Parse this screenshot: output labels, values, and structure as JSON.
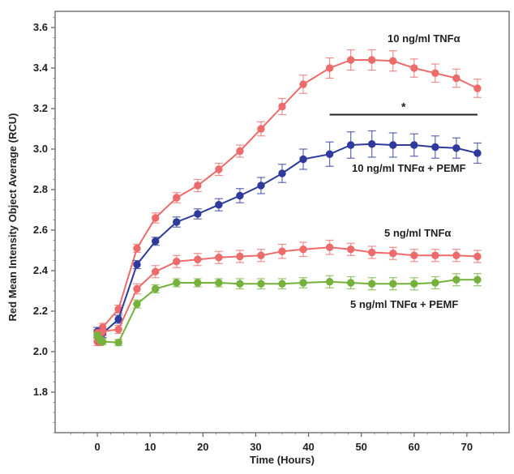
{
  "chart_data": {
    "type": "line",
    "xlabel": "Time (Hours)",
    "ylabel": "Red Mean Intensity Object Average (RCU)",
    "xlim": [
      -8,
      78
    ],
    "ylim": [
      1.6,
      3.68
    ],
    "xticks": [
      0,
      10,
      20,
      30,
      40,
      50,
      60,
      70
    ],
    "yticks": [
      1.8,
      2.0,
      2.2,
      2.4,
      2.6,
      2.8,
      3.0,
      3.2,
      3.4,
      3.6
    ],
    "x": [
      0,
      0.5,
      1,
      4,
      7.5,
      11,
      15,
      19,
      23,
      27,
      31,
      35,
      39,
      44,
      48,
      52,
      56,
      60,
      64,
      68,
      72
    ],
    "series": [
      {
        "name": "10 ng/ml TNFα",
        "color": "#ee6b6b",
        "values": [
          2.05,
          2.07,
          2.12,
          2.21,
          2.51,
          2.66,
          2.76,
          2.82,
          2.9,
          2.99,
          3.1,
          3.21,
          3.32,
          3.4,
          3.44,
          3.44,
          3.435,
          3.4,
          3.375,
          3.35,
          3.3
        ],
        "errors": [
          0.02,
          0.02,
          0.02,
          0.02,
          0.02,
          0.025,
          0.025,
          0.03,
          0.03,
          0.03,
          0.035,
          0.04,
          0.045,
          0.05,
          0.05,
          0.05,
          0.05,
          0.045,
          0.045,
          0.045,
          0.045
        ]
      },
      {
        "name": "10 ng/ml TNFα + PEMF",
        "color": "#2e3a9c",
        "values": [
          2.1,
          2.06,
          2.09,
          2.16,
          2.43,
          2.545,
          2.64,
          2.68,
          2.725,
          2.77,
          2.82,
          2.88,
          2.95,
          2.975,
          3.02,
          3.025,
          3.02,
          3.02,
          3.01,
          3.005,
          2.98
        ],
        "errors": [
          0.02,
          0.02,
          0.02,
          0.02,
          0.02,
          0.02,
          0.025,
          0.025,
          0.03,
          0.035,
          0.04,
          0.045,
          0.05,
          0.06,
          0.065,
          0.065,
          0.06,
          0.055,
          0.055,
          0.05,
          0.05
        ]
      },
      {
        "name": "5 ng/ml TNFα",
        "color": "#ee6b6b",
        "values": [
          2.09,
          2.05,
          2.1,
          2.11,
          2.31,
          2.395,
          2.445,
          2.455,
          2.465,
          2.47,
          2.475,
          2.495,
          2.505,
          2.515,
          2.505,
          2.49,
          2.485,
          2.475,
          2.475,
          2.475,
          2.47
        ],
        "errors": [
          0.02,
          0.02,
          0.02,
          0.02,
          0.025,
          0.03,
          0.03,
          0.03,
          0.03,
          0.03,
          0.03,
          0.035,
          0.035,
          0.035,
          0.03,
          0.03,
          0.03,
          0.03,
          0.03,
          0.03,
          0.03
        ]
      },
      {
        "name": "5 ng/ml TNFα + PEMF",
        "color": "#74b23c",
        "values": [
          2.08,
          2.06,
          2.05,
          2.045,
          2.235,
          2.31,
          2.34,
          2.34,
          2.34,
          2.335,
          2.335,
          2.335,
          2.34,
          2.345,
          2.34,
          2.335,
          2.335,
          2.335,
          2.34,
          2.355,
          2.355
        ],
        "errors": [
          0.015,
          0.015,
          0.015,
          0.015,
          0.02,
          0.02,
          0.02,
          0.02,
          0.02,
          0.025,
          0.025,
          0.025,
          0.025,
          0.03,
          0.03,
          0.03,
          0.03,
          0.03,
          0.03,
          0.03,
          0.03
        ]
      }
    ],
    "annotations": {
      "significance_symbol": "*",
      "significance_bar": {
        "x_start": 44,
        "x_end": 72,
        "y": 3.17
      }
    },
    "grid": false,
    "legend": "inline labels"
  }
}
